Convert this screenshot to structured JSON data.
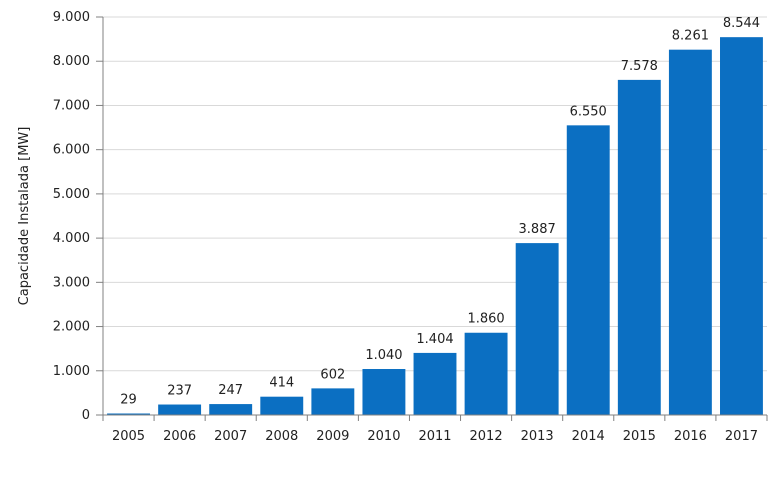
{
  "chart_data": {
    "type": "bar",
    "title": "",
    "xlabel": "",
    "ylabel": "Capacidade Instalada [MW]",
    "categories": [
      "2005",
      "2006",
      "2007",
      "2008",
      "2009",
      "2010",
      "2011",
      "2012",
      "2013",
      "2014",
      "2015",
      "2016",
      "2017"
    ],
    "values": [
      29,
      237,
      247,
      414,
      602,
      1040,
      1404,
      1860,
      3887,
      6550,
      7578,
      8261,
      8544
    ],
    "value_labels": [
      "29",
      "237",
      "247",
      "414",
      "602",
      "1.040",
      "1.404",
      "1.860",
      "3.887",
      "6.550",
      "7.578",
      "8.261",
      "8.544"
    ],
    "ylim": [
      0,
      9000
    ],
    "yticks": [
      0,
      1000,
      2000,
      3000,
      4000,
      5000,
      6000,
      7000,
      8000,
      9000
    ],
    "ytick_labels": [
      "0",
      "1.000",
      "2.000",
      "3.000",
      "4.000",
      "5.000",
      "6.000",
      "7.000",
      "8.000",
      "9.000"
    ],
    "grid": true,
    "legend": "none",
    "bar_color": "#0B6FC2",
    "grid_color": "#D9D9D9",
    "axis_color": "#808080"
  }
}
